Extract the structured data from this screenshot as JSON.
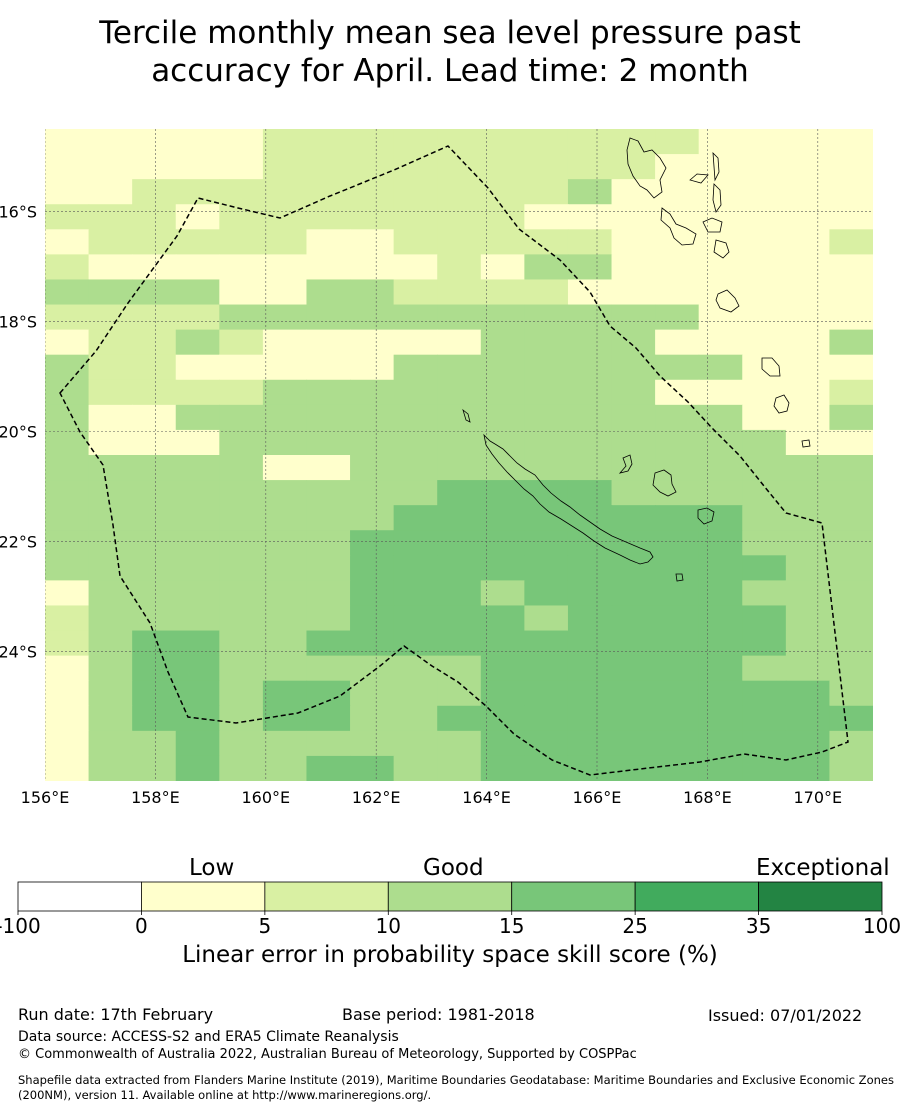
{
  "title": {
    "line1": "Tercile monthly mean sea level pressure past",
    "line2": "accuracy for April. Lead time: 2 month"
  },
  "map": {
    "lon_range": [
      156,
      171
    ],
    "lat_range": [
      -26.35,
      -14.5
    ],
    "lon_ticks": [
      "156°E",
      "158°E",
      "160°E",
      "162°E",
      "164°E",
      "166°E",
      "168°E",
      "170°E"
    ],
    "lat_ticks": [
      "16°S",
      "18°S",
      "20°S",
      "22°S",
      "24°S"
    ],
    "lon_tick_values": [
      156,
      158,
      160,
      162,
      164,
      166,
      168,
      170
    ],
    "lat_tick_values": [
      -16,
      -18,
      -20,
      -22,
      -24
    ],
    "grid": "dotted",
    "cell_classes": [
      "1111122222222221111",
      "1111122222222211111",
      "1122222222223111111",
      "2221222222211111111",
      "1222221122222111112",
      "2111111112133111111",
      "3333113322221111111",
      "2222333333333331111",
      "1223211111333311113",
      "3221111133333333111",
      "3222233333333311112",
      "3113333333333333113",
      "3111333333333333311",
      "3333311333333333333",
      "3333333334444333333",
      "3333333344444444333",
      "3333333444444444333",
      "3333333444444444433",
      "1333333444344444333",
      "2333333444434444433",
      "2344334444444444433",
      "1344333333444444333",
      "1344344333444444443",
      "1344344334444444444",
      "1334333333444444443",
      "1334334433444444443"
    ]
  },
  "colorbar": {
    "ticks": [
      "-100",
      "0",
      "5",
      "10",
      "15",
      "25",
      "35",
      "100"
    ],
    "colors": [
      "#ffffff",
      "#ffffcc",
      "#d9f0a3",
      "#addd8e",
      "#78c679",
      "#41ab5d",
      "#238443"
    ],
    "category_labels": [
      "Low",
      "Good",
      "Exceptional"
    ],
    "title": "Linear error in probability space skill score (%)"
  },
  "footer": {
    "run_date": "Run date: 17th February",
    "base_period": "Base period: 1981-2018",
    "issued": "Issued: 07/01/2022",
    "data_source": "Data source: ACCESS-S2 and ERA5 Climate Reanalysis",
    "copyright": "© Commonwealth of Australia 2022, Australian Bureau of Meteorology, Supported by COSPPac",
    "shapefile": "Shapefile data extracted from Flanders Marine Institute (2019), Maritime Boundaries Geodatabase: Maritime Boundaries and Exclusive Economic Zones (200NM), version 11. Available online at http://www.marineregions.org/."
  }
}
